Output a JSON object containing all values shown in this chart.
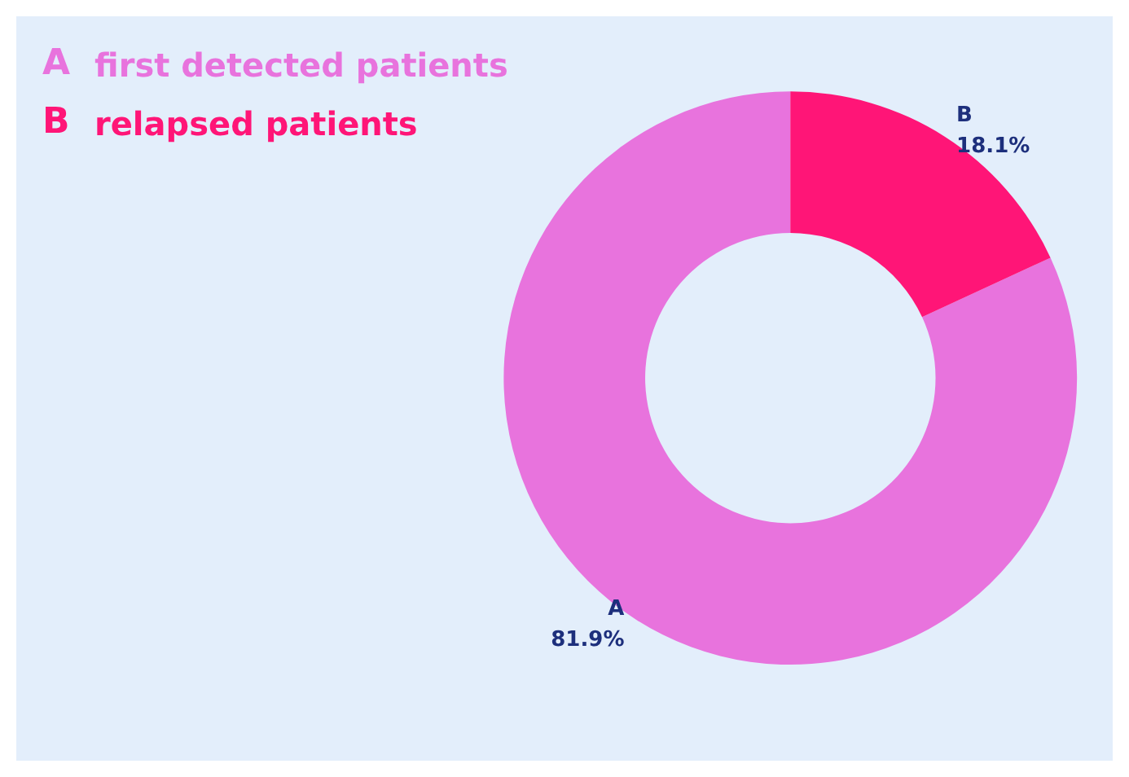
{
  "chart_data": {
    "type": "donut",
    "categories": [
      "A",
      "B"
    ],
    "values": [
      81.9,
      18.1
    ],
    "colors": [
      "#e873dd",
      "#ff1577"
    ],
    "value_labels": [
      "81.9%",
      "18.1%"
    ],
    "annotations": [
      "first detected patients",
      "relapsed patients"
    ]
  }
}
